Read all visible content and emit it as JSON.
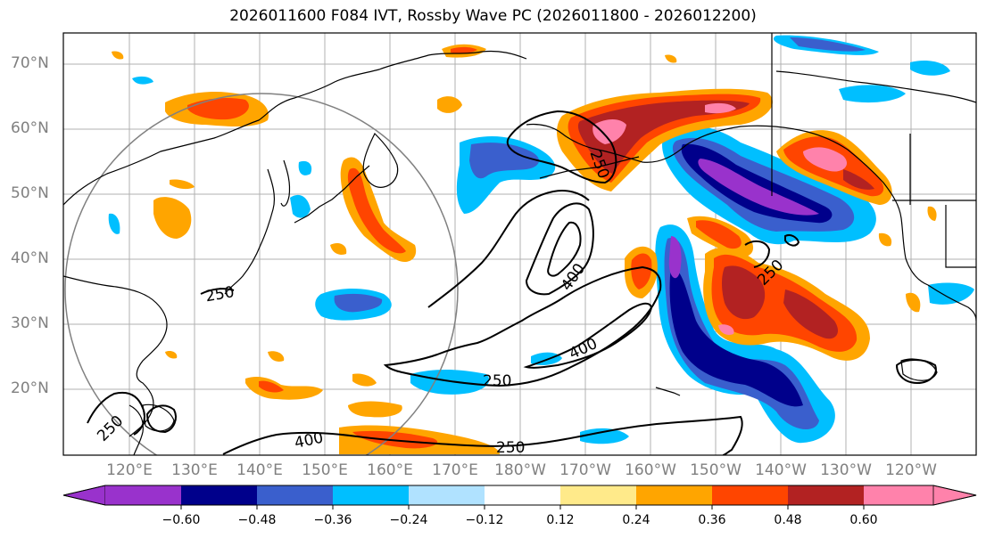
{
  "title": "2026011600 F084 IVT, Rossby Wave PC (2026011800 - 2026012200)",
  "latitude_labels": [
    "70°N",
    "60°N",
    "50°N",
    "40°N",
    "30°N",
    "20°N"
  ],
  "longitude_labels": [
    "120°E",
    "130°E",
    "140°E",
    "150°E",
    "160°E",
    "170°E",
    "180°W",
    "170°W",
    "160°W",
    "150°W",
    "140°W",
    "130°W",
    "120°W"
  ],
  "contour_labels": [
    "250",
    "400",
    "400",
    "250",
    "250",
    "400",
    "250",
    "250",
    "250"
  ],
  "colorbar": {
    "colors": [
      "#9932cc",
      "#00008b",
      "#3a5fcd",
      "#00bfff",
      "#b0e2ff",
      "#ffffff",
      "#ffea8a",
      "#ffa500",
      "#ff4500",
      "#b22222",
      "#ff82ab"
    ],
    "tick_labels": [
      "−0.60",
      "−0.48",
      "−0.36",
      "−0.24",
      "−0.12",
      "0.12",
      "0.24",
      "0.36",
      "0.48",
      "0.60"
    ]
  },
  "colors": {
    "contour": "#000000",
    "coast": "#000000",
    "grid": "#b0b0b0",
    "circle": "#808080",
    "axis_label": "#808080"
  }
}
